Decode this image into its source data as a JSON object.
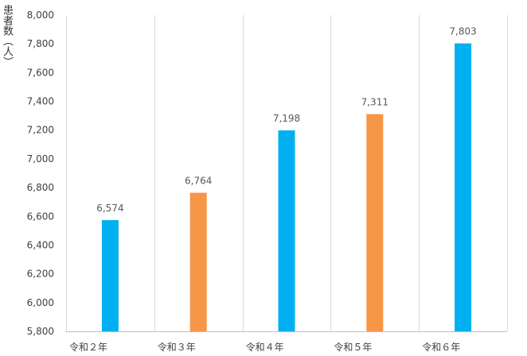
{
  "chart_data": {
    "type": "bar",
    "ylabel": "患者数（人）",
    "categories": [
      "令和２年",
      "令和３年",
      "令和４年",
      "令和５年",
      "令和６年"
    ],
    "values": [
      6574,
      6764,
      7198,
      7311,
      7803
    ],
    "data_labels": [
      "6,574",
      "6,764",
      "7,198",
      "7,311",
      "7,803"
    ],
    "ylim": [
      5800,
      8000
    ],
    "yticks": [
      5800,
      6000,
      6200,
      6400,
      6600,
      6800,
      7000,
      7200,
      7400,
      7600,
      7800,
      8000
    ],
    "ytick_labels": [
      "5,800",
      "6,000",
      "6,200",
      "6,400",
      "6,600",
      "6,800",
      "7,000",
      "7,200",
      "7,400",
      "7,600",
      "7,800",
      "8,000"
    ],
    "bar_colors": [
      "#00B0F0",
      "#F79646",
      "#00B0F0",
      "#F79646",
      "#00B0F0"
    ],
    "grid": "vertical category separators",
    "legend": "none"
  }
}
